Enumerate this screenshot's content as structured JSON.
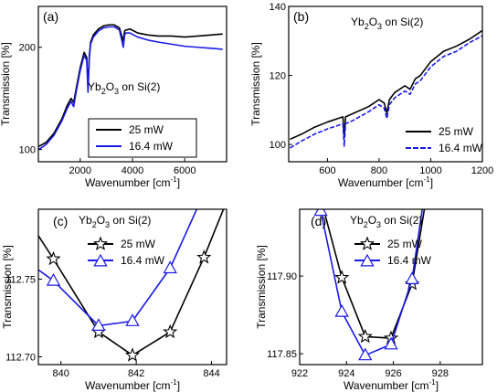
{
  "chart_data": [
    {
      "panel": "(a)",
      "type": "line",
      "xlabel": "Wavenumber [cm⁻¹]",
      "ylabel": "Transmission [%]",
      "xlim": [
        400,
        7600
      ],
      "ylim": [
        88,
        240
      ],
      "xticks": [
        2000,
        4000,
        6000
      ],
      "xticklabels": [
        "2000",
        "4000",
        "6000"
      ],
      "yticks": [
        100,
        200
      ],
      "yticklabels": [
        "100",
        "200"
      ],
      "annotation": {
        "pre": "Yb",
        "sub1": "2",
        "mid": "O",
        "sub2": "3",
        "post": " on Si(2)"
      },
      "legend_position": "bottom-right",
      "series": [
        {
          "name": "25 mW",
          "color": "#000000",
          "marker": "none",
          "x": [
            420,
            700,
            1000,
            1300,
            1500,
            1650,
            1750,
            1850,
            2000,
            2150,
            2250,
            2300,
            2350,
            2400,
            2500,
            2700,
            2900,
            3100,
            3300,
            3500,
            3650,
            3700,
            3750,
            3800,
            3900,
            4200,
            4600,
            5000,
            5500,
            6000,
            6500,
            7000,
            7450
          ],
          "y": [
            103,
            107,
            116,
            130,
            143,
            150,
            146,
            160,
            180,
            195,
            190,
            160,
            192,
            205,
            212,
            218,
            221,
            222,
            222,
            219,
            206,
            216,
            217,
            217,
            218,
            214,
            212,
            211,
            211,
            210,
            211,
            212,
            213
          ]
        },
        {
          "name": "16.4 mW",
          "color": "#1a1ae6",
          "marker": "none",
          "x": [
            420,
            700,
            1000,
            1300,
            1500,
            1650,
            1750,
            1850,
            2000,
            2150,
            2250,
            2300,
            2350,
            2400,
            2500,
            2700,
            2900,
            3100,
            3300,
            3500,
            3650,
            3700,
            3750,
            3800,
            3900,
            4200,
            4600,
            5000,
            5500,
            6000,
            6500,
            7000,
            7450
          ],
          "y": [
            100,
            105,
            114,
            128,
            140,
            147,
            142,
            157,
            177,
            192,
            187,
            156,
            190,
            203,
            210,
            216,
            219,
            220,
            220,
            217,
            200,
            212,
            214,
            214,
            214,
            210,
            207,
            205,
            203,
            201,
            200,
            199,
            198
          ]
        }
      ]
    },
    {
      "panel": "(b)",
      "type": "line",
      "xlabel": "Wavenumber [cm⁻¹]",
      "ylabel": "Transmission [%]",
      "xlim": [
        450,
        1200
      ],
      "ylim": [
        95,
        140
      ],
      "xticks": [
        600,
        800,
        1000,
        1200
      ],
      "xticklabels": [
        "600",
        "800",
        "1000",
        "1200"
      ],
      "yticks": [
        100,
        120,
        140
      ],
      "yticklabels": [
        "100",
        "120",
        "140"
      ],
      "annotation": {
        "pre": "Yb",
        "sub1": "2",
        "mid": "O",
        "sub2": "3",
        "post": " on Si(2)"
      },
      "legend_position": "bottom-right",
      "series": [
        {
          "name": "25 mW",
          "color": "#000000",
          "marker": "none",
          "x": [
            455,
            500,
            550,
            600,
            640,
            660,
            665,
            670,
            700,
            760,
            800,
            820,
            830,
            840,
            860,
            900,
            920,
            940,
            960,
            1000,
            1050,
            1100,
            1150,
            1200
          ],
          "y": [
            101.5,
            103,
            105,
            106.5,
            107.5,
            108,
            102,
            108,
            109,
            111,
            113,
            112,
            109,
            113,
            115,
            117,
            116,
            119,
            120,
            124,
            127,
            128.5,
            130.5,
            133
          ]
        },
        {
          "name": "16.4 mW",
          "color": "#1a1ae6",
          "marker": "dash",
          "x": [
            455,
            500,
            550,
            600,
            640,
            660,
            665,
            670,
            700,
            760,
            800,
            820,
            830,
            840,
            860,
            900,
            920,
            940,
            960,
            1000,
            1050,
            1100,
            1150,
            1200
          ],
          "y": [
            99,
            101,
            103,
            104.5,
            105.5,
            106,
            99.5,
            106,
            107,
            109.5,
            111.5,
            110.5,
            107.5,
            111.5,
            113.5,
            115.5,
            114.5,
            117.5,
            118.5,
            122.5,
            125.5,
            127,
            129.5,
            131.5
          ]
        }
      ]
    },
    {
      "panel": "(c)",
      "type": "line",
      "xlabel": "Wavenumber [cm⁻¹]",
      "ylabel": "Transmission [%]",
      "xlim": [
        839.4,
        844.4
      ],
      "ylim": [
        112.695,
        112.795
      ],
      "xticks": [
        840,
        842,
        844
      ],
      "xticklabels": [
        "840",
        "842",
        "844"
      ],
      "yticks": [
        112.7,
        112.75
      ],
      "yticklabels": [
        "112.70",
        "112.75"
      ],
      "annotation": {
        "pre": "Yb",
        "sub1": "2",
        "mid": "O",
        "sub2": "3",
        "post": " on Si(2)"
      },
      "legend_position": "top-left",
      "series": [
        {
          "name": "25 mW",
          "color": "#000000",
          "marker": "star",
          "x": [
            839.4,
            839.8,
            841.0,
            841.9,
            842.9,
            843.8,
            844.4
          ],
          "y": [
            112.778,
            112.763,
            112.716,
            112.701,
            112.716,
            112.764,
            112.8
          ],
          "marker_x": [
            839.8,
            841.0,
            841.9,
            842.9,
            843.8
          ],
          "marker_y": [
            112.763,
            112.716,
            112.701,
            112.716,
            112.764
          ]
        },
        {
          "name": "16.4 mW",
          "color": "#1a1ae6",
          "marker": "triangle",
          "x": [
            839.4,
            839.8,
            841.0,
            841.9,
            842.9,
            843.7
          ],
          "y": [
            112.756,
            112.749,
            112.72,
            112.723,
            112.757,
            112.8
          ],
          "marker_x": [
            839.8,
            841.0,
            841.9,
            842.9
          ],
          "marker_y": [
            112.749,
            112.72,
            112.723,
            112.757
          ]
        }
      ]
    },
    {
      "panel": "(d)",
      "type": "line",
      "xlabel": "Wavenumber [cm⁻¹]",
      "ylabel": "Transmission [%]",
      "xlim": [
        922,
        929.8
      ],
      "ylim": [
        117.843,
        117.943
      ],
      "xticks": [
        922,
        924,
        926,
        928
      ],
      "xticklabels": [
        "922",
        "924",
        "926",
        "928"
      ],
      "yticks": [
        117.85,
        117.9
      ],
      "yticklabels": [
        "117.85",
        "117.90"
      ],
      "annotation": {
        "pre": "Yb",
        "sub1": "2",
        "mid": "O",
        "sub2": "3",
        "post": " on Si(2)"
      },
      "legend_position": "top-left",
      "series": [
        {
          "name": "25 mW",
          "color": "#000000",
          "marker": "star",
          "x": [
            922.9,
            923.8,
            924.8,
            925.9,
            926.8,
            927.4
          ],
          "y": [
            117.95,
            117.899,
            117.861,
            117.86,
            117.895,
            117.95
          ],
          "marker_x": [
            923.8,
            924.8,
            925.9,
            926.8
          ],
          "marker_y": [
            117.899,
            117.861,
            117.86,
            117.895
          ]
        },
        {
          "name": "16.4 mW",
          "color": "#1a1ae6",
          "marker": "triangle",
          "x": [
            922.6,
            922.9,
            923.8,
            924.8,
            925.9,
            926.8,
            927.3
          ],
          "y": [
            117.955,
            117.942,
            117.877,
            117.849,
            117.856,
            117.898,
            117.95
          ],
          "marker_x": [
            922.9,
            923.8,
            924.8,
            925.9,
            926.8
          ],
          "marker_y": [
            117.942,
            117.877,
            117.849,
            117.856,
            117.898
          ]
        }
      ]
    }
  ]
}
